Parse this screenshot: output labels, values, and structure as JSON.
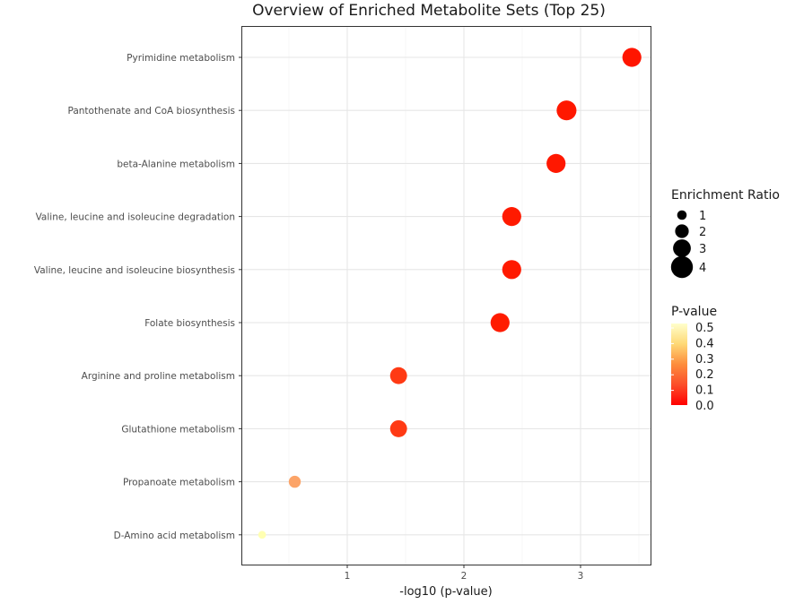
{
  "chart_data": {
    "type": "scatter",
    "title": "Overview of Enriched Metabolite Sets (Top 25)",
    "xlabel": "-log10 (p-value)",
    "ylabel": "",
    "xlim": [
      0.1,
      3.6
    ],
    "x_ticks": [
      "1",
      "2",
      "3"
    ],
    "x_tick_values": [
      1,
      2,
      3
    ],
    "grid": true,
    "categories": [
      "Pyrimidine metabolism",
      "Pantothenate and CoA biosynthesis",
      "beta-Alanine metabolism",
      "Valine, leucine and isoleucine degradation",
      "Valine, leucine and isoleucine biosynthesis",
      "Folate biosynthesis",
      "Arginine and proline metabolism",
      "Glutathione metabolism",
      "Propanoate metabolism",
      "D-Amino acid metabolism"
    ],
    "points": [
      {
        "category": "Pyrimidine metabolism",
        "x": 3.44,
        "enrichment_ratio": 3.3,
        "p_value": 0.0004,
        "color": "#ff1500"
      },
      {
        "category": "Pantothenate and CoA biosynthesis",
        "x": 2.88,
        "enrichment_ratio": 3.5,
        "p_value": 0.0013,
        "color": "#ff1800"
      },
      {
        "category": "beta-Alanine metabolism",
        "x": 2.79,
        "enrichment_ratio": 3.3,
        "p_value": 0.0016,
        "color": "#ff1800"
      },
      {
        "category": "Valine, leucine and isoleucine degradation",
        "x": 2.41,
        "enrichment_ratio": 3.3,
        "p_value": 0.0039,
        "color": "#ff1a00"
      },
      {
        "category": "Valine, leucine and isoleucine biosynthesis",
        "x": 2.41,
        "enrichment_ratio": 3.3,
        "p_value": 0.0039,
        "color": "#ff1a00"
      },
      {
        "category": "Folate biosynthesis",
        "x": 2.31,
        "enrichment_ratio": 3.3,
        "p_value": 0.0049,
        "color": "#ff1c00"
      },
      {
        "category": "Arginine and proline metabolism",
        "x": 1.44,
        "enrichment_ratio": 2.8,
        "p_value": 0.036,
        "color": "#ff3a14"
      },
      {
        "category": "Glutathione metabolism",
        "x": 1.44,
        "enrichment_ratio": 2.8,
        "p_value": 0.036,
        "color": "#ff3a14"
      },
      {
        "category": "Propanoate metabolism",
        "x": 0.55,
        "enrichment_ratio": 1.6,
        "p_value": 0.28,
        "color": "#fca468"
      },
      {
        "category": "D-Amino acid metabolism",
        "x": 0.27,
        "enrichment_ratio": 0.6,
        "p_value": 0.54,
        "color": "#ffffb2"
      }
    ],
    "legend_size": {
      "title": "Enrichment Ratio",
      "labels": [
        "1",
        "2",
        "3",
        "4"
      ],
      "values": [
        1,
        2,
        3,
        4
      ]
    },
    "legend_color": {
      "title": "P-value",
      "labels": [
        "0.5",
        "0.4",
        "0.3",
        "0.2",
        "0.1",
        "0.0"
      ],
      "colors": [
        "#ffffcc",
        "#fed976",
        "#fd8d3c",
        "#fc4e2a",
        "#ff0000"
      ]
    },
    "legend_placement": "right"
  }
}
